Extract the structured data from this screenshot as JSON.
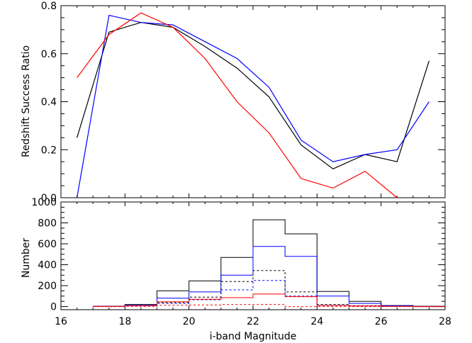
{
  "chart_data": [
    {
      "type": "line",
      "title": "",
      "xlabel": "",
      "ylabel": "Redshift Success Ratio",
      "xlim": [
        16,
        28
      ],
      "ylim": [
        0.0,
        0.8
      ],
      "xticks": [
        16,
        18,
        20,
        22,
        24,
        26,
        28
      ],
      "yticks": [
        0.0,
        0.2,
        0.4,
        0.6,
        0.8
      ],
      "ytick_labels": [
        "0.0",
        "0.2",
        "0.4",
        "0.6",
        "0.8"
      ],
      "grid": false,
      "series": [
        {
          "color": "#000000",
          "x": [
            16.5,
            17.5,
            18.5,
            19.5,
            20.5,
            21.5,
            22.5,
            23.5,
            24.5,
            25.5,
            26.5,
            27.5
          ],
          "y": [
            0.25,
            0.69,
            0.73,
            0.71,
            0.63,
            0.54,
            0.42,
            0.22,
            0.12,
            0.18,
            0.15,
            0.57
          ]
        },
        {
          "color": "#0000ff",
          "x": [
            16.5,
            17.5,
            18.5,
            19.5,
            20.5,
            21.5,
            22.5,
            23.5,
            24.5,
            25.5,
            26.5,
            27.5
          ],
          "y": [
            0.0,
            0.76,
            0.73,
            0.72,
            0.65,
            0.58,
            0.46,
            0.24,
            0.15,
            0.18,
            0.2,
            0.4
          ]
        },
        {
          "color": "#ff0000",
          "x": [
            16.5,
            17.5,
            18.5,
            19.5,
            20.5,
            21.5,
            22.5,
            23.5,
            24.5,
            25.5,
            26.5
          ],
          "y": [
            0.5,
            0.68,
            0.77,
            0.71,
            0.58,
            0.4,
            0.27,
            0.08,
            0.04,
            0.11,
            0.0
          ]
        }
      ]
    },
    {
      "type": "histogram",
      "title": "",
      "xlabel": "i-band Magnitude",
      "ylabel": "Number",
      "xlim": [
        16,
        28
      ],
      "ylim": [
        -30,
        1000
      ],
      "xticks": [
        16,
        18,
        20,
        22,
        24,
        26,
        28
      ],
      "yticks": [
        0,
        200,
        400,
        600,
        800,
        1000
      ],
      "grid": false,
      "bin_edges": [
        17,
        18,
        19,
        20,
        21,
        22,
        23,
        24,
        25,
        26,
        27,
        28
      ],
      "series": [
        {
          "color": "#000000",
          "linestyle": "solid",
          "counts": [
            3,
            20,
            150,
            245,
            470,
            830,
            695,
            145,
            50,
            10,
            3
          ]
        },
        {
          "color": "#0000ff",
          "linestyle": "solid",
          "counts": [
            2,
            12,
            80,
            140,
            300,
            575,
            480,
            100,
            30,
            8,
            1
          ]
        },
        {
          "color": "#000000",
          "linestyle": "dashed",
          "counts": [
            1,
            6,
            40,
            90,
            240,
            345,
            140,
            20,
            8,
            2,
            0
          ]
        },
        {
          "color": "#0000ff",
          "linestyle": "dashed",
          "counts": [
            0,
            4,
            30,
            65,
            160,
            250,
            100,
            12,
            5,
            2,
            0
          ]
        },
        {
          "color": "#ff0000",
          "linestyle": "solid",
          "counts": [
            1,
            8,
            45,
            70,
            85,
            120,
            95,
            10,
            5,
            2,
            0
          ]
        },
        {
          "color": "#ff0000",
          "linestyle": "dashed",
          "counts": [
            0,
            2,
            12,
            15,
            20,
            20,
            0,
            0,
            0,
            0,
            0
          ]
        }
      ]
    }
  ]
}
